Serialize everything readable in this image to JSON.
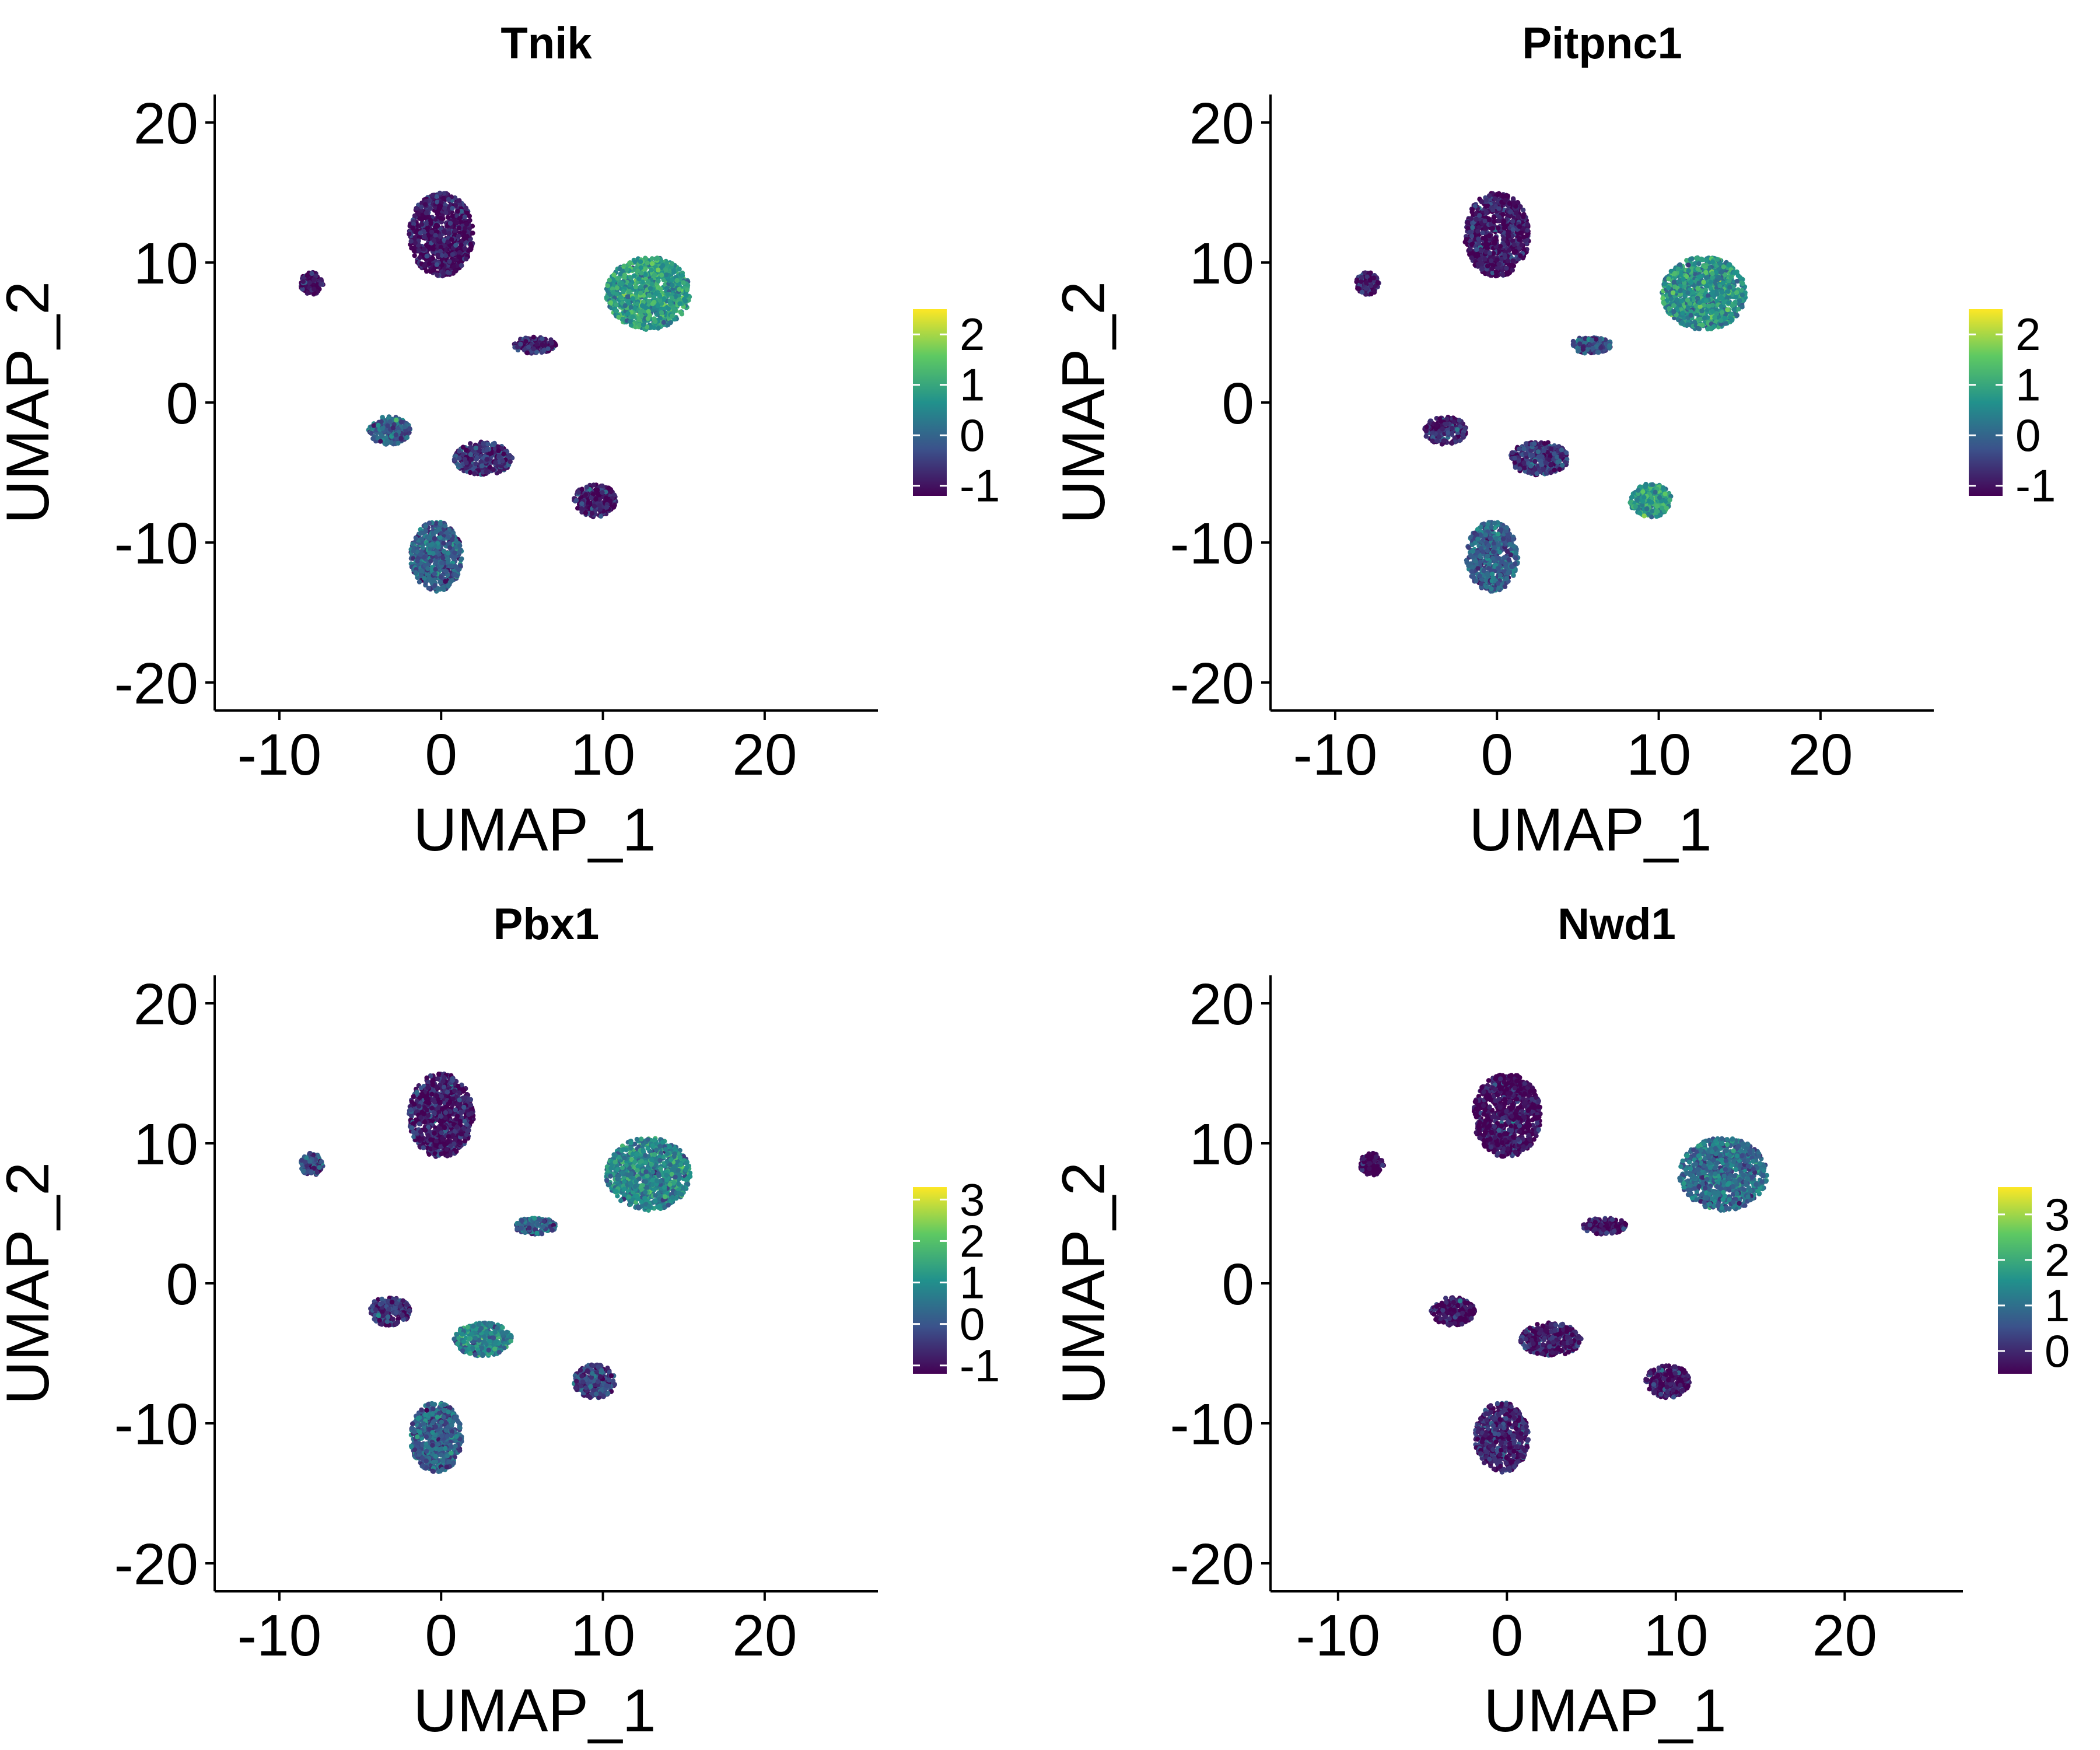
{
  "chart_data": [
    {
      "type": "scatter",
      "title": "Tnik",
      "xlabel": "UMAP_1",
      "ylabel": "UMAP_2",
      "xlim": [
        -14,
        27
      ],
      "ylim": [
        -22,
        22
      ],
      "xticks": [
        "-10",
        "0",
        "10",
        "20"
      ],
      "yticks": [
        "-20",
        "-10",
        "0",
        "10",
        "20"
      ],
      "grid": false,
      "legend": "right",
      "colorbar": {
        "min": -1.2,
        "max": 2.5,
        "ticks": [
          "-1",
          "0",
          "1",
          "2"
        ],
        "colormap": "viridis"
      },
      "clusters": [
        {
          "x": 0.0,
          "y": 12.0,
          "rx": 2.0,
          "ry": 3.0,
          "level": 0.05
        },
        {
          "x": 12.8,
          "y": 7.8,
          "rx": 2.6,
          "ry": 2.6,
          "level": 0.55
        },
        {
          "x": -8.0,
          "y": 8.5,
          "rx": 0.7,
          "ry": 0.8,
          "level": 0.05
        },
        {
          "x": 5.8,
          "y": 4.1,
          "rx": 1.3,
          "ry": 0.6,
          "level": 0.1
        },
        {
          "x": -3.2,
          "y": -2.0,
          "rx": 1.3,
          "ry": 1.0,
          "level": 0.3
        },
        {
          "x": 2.6,
          "y": -4.0,
          "rx": 1.8,
          "ry": 1.2,
          "level": 0.15
        },
        {
          "x": 9.5,
          "y": -7.0,
          "rx": 1.3,
          "ry": 1.2,
          "level": 0.05
        },
        {
          "x": -0.3,
          "y": -11.0,
          "rx": 1.6,
          "ry": 2.5,
          "level": 0.3
        }
      ]
    },
    {
      "type": "scatter",
      "title": "Pitpnc1",
      "xlabel": "UMAP_1",
      "ylabel": "UMAP_2",
      "xlim": [
        -14,
        27
      ],
      "ylim": [
        -22,
        22
      ],
      "xticks": [
        "-10",
        "0",
        "10",
        "20"
      ],
      "yticks": [
        "-20",
        "-10",
        "0",
        "10",
        "20"
      ],
      "grid": false,
      "legend": "right",
      "colorbar": {
        "min": -1.2,
        "max": 2.5,
        "ticks": [
          "-1",
          "0",
          "1",
          "2"
        ],
        "colormap": "viridis"
      },
      "clusters": [
        {
          "x": 0.0,
          "y": 12.0,
          "rx": 2.0,
          "ry": 3.0,
          "level": 0.05
        },
        {
          "x": 12.8,
          "y": 7.8,
          "rx": 2.6,
          "ry": 2.6,
          "level": 0.5
        },
        {
          "x": -8.0,
          "y": 8.5,
          "rx": 0.7,
          "ry": 0.8,
          "level": 0.1
        },
        {
          "x": 5.8,
          "y": 4.1,
          "rx": 1.3,
          "ry": 0.6,
          "level": 0.25
        },
        {
          "x": -3.2,
          "y": -2.0,
          "rx": 1.3,
          "ry": 1.0,
          "level": 0.1
        },
        {
          "x": 2.6,
          "y": -4.0,
          "rx": 1.8,
          "ry": 1.2,
          "level": 0.15
        },
        {
          "x": 9.5,
          "y": -7.0,
          "rx": 1.3,
          "ry": 1.2,
          "level": 0.55
        },
        {
          "x": -0.3,
          "y": -11.0,
          "rx": 1.6,
          "ry": 2.5,
          "level": 0.3
        }
      ]
    },
    {
      "type": "scatter",
      "title": "Pbx1",
      "xlabel": "UMAP_1",
      "ylabel": "UMAP_2",
      "xlim": [
        -14,
        27
      ],
      "ylim": [
        -22,
        22
      ],
      "xticks": [
        "-10",
        "0",
        "10",
        "20"
      ],
      "yticks": [
        "-20",
        "-10",
        "0",
        "10",
        "20"
      ],
      "grid": false,
      "legend": "right",
      "colorbar": {
        "min": -1.2,
        "max": 3.3,
        "ticks": [
          "-1",
          "0",
          "1",
          "2",
          "3"
        ],
        "colormap": "viridis"
      },
      "clusters": [
        {
          "x": 0.0,
          "y": 12.0,
          "rx": 2.0,
          "ry": 3.0,
          "level": 0.08
        },
        {
          "x": 12.8,
          "y": 7.8,
          "rx": 2.6,
          "ry": 2.6,
          "level": 0.45
        },
        {
          "x": -8.0,
          "y": 8.5,
          "rx": 0.7,
          "ry": 0.8,
          "level": 0.25
        },
        {
          "x": 5.8,
          "y": 4.1,
          "rx": 1.3,
          "ry": 0.6,
          "level": 0.3
        },
        {
          "x": -3.2,
          "y": -2.0,
          "rx": 1.3,
          "ry": 1.0,
          "level": 0.15
        },
        {
          "x": 2.6,
          "y": -4.0,
          "rx": 1.8,
          "ry": 1.2,
          "level": 0.45
        },
        {
          "x": 9.5,
          "y": -7.0,
          "rx": 1.3,
          "ry": 1.2,
          "level": 0.2
        },
        {
          "x": -0.3,
          "y": -11.0,
          "rx": 1.6,
          "ry": 2.5,
          "level": 0.3
        }
      ]
    },
    {
      "type": "scatter",
      "title": "Nwd1",
      "xlabel": "UMAP_1",
      "ylabel": "UMAP_2",
      "xlim": [
        -14,
        27
      ],
      "ylim": [
        -22,
        22
      ],
      "xticks": [
        "-10",
        "0",
        "10",
        "20"
      ],
      "yticks": [
        "-20",
        "-10",
        "0",
        "10",
        "20"
      ],
      "grid": false,
      "legend": "right",
      "colorbar": {
        "min": -0.5,
        "max": 3.6,
        "ticks": [
          "0",
          "1",
          "2",
          "3"
        ],
        "colormap": "viridis"
      },
      "clusters": [
        {
          "x": 0.0,
          "y": 12.0,
          "rx": 2.0,
          "ry": 3.0,
          "level": 0.02
        },
        {
          "x": 12.8,
          "y": 7.8,
          "rx": 2.6,
          "ry": 2.6,
          "level": 0.35
        },
        {
          "x": -8.0,
          "y": 8.5,
          "rx": 0.7,
          "ry": 0.8,
          "level": 0.02
        },
        {
          "x": 5.8,
          "y": 4.1,
          "rx": 1.3,
          "ry": 0.6,
          "level": 0.05
        },
        {
          "x": -3.2,
          "y": -2.0,
          "rx": 1.3,
          "ry": 1.0,
          "level": 0.03
        },
        {
          "x": 2.6,
          "y": -4.0,
          "rx": 1.8,
          "ry": 1.2,
          "level": 0.08
        },
        {
          "x": 9.5,
          "y": -7.0,
          "rx": 1.3,
          "ry": 1.2,
          "level": 0.03
        },
        {
          "x": -0.3,
          "y": -11.0,
          "rx": 1.6,
          "ry": 2.5,
          "level": 0.1
        }
      ]
    }
  ]
}
